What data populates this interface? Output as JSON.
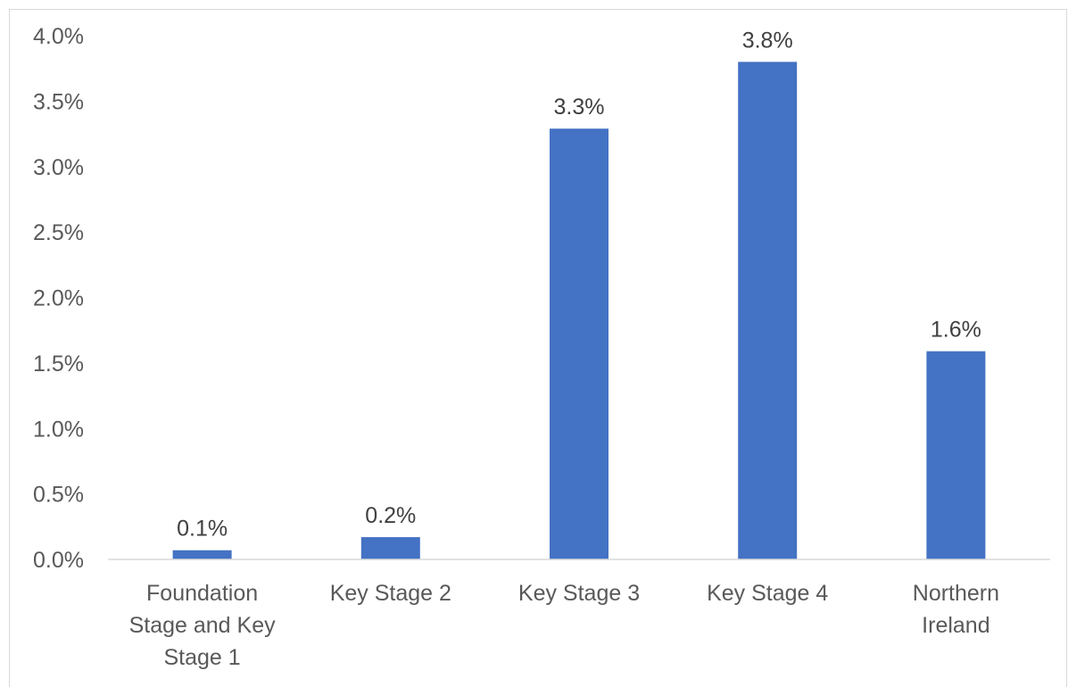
{
  "chart_data": {
    "type": "bar",
    "title": "",
    "xlabel": "",
    "ylabel": "",
    "categories": [
      [
        "Foundation",
        "Stage and Key",
        "Stage 1"
      ],
      [
        "Key Stage 2"
      ],
      [
        "Key Stage 3"
      ],
      [
        "Key Stage 4"
      ],
      [
        "Northern",
        "Ireland"
      ]
    ],
    "values": [
      0.07,
      0.17,
      3.29,
      3.8,
      1.59
    ],
    "data_labels": [
      "0.1%",
      "0.2%",
      "3.3%",
      "3.8%",
      "1.6%"
    ],
    "ylim": [
      0,
      4.0
    ],
    "yticks": [
      "0.0%",
      "0.5%",
      "1.0%",
      "1.5%",
      "2.0%",
      "2.5%",
      "3.0%",
      "3.5%",
      "4.0%"
    ],
    "grid": false,
    "legend": "none",
    "bar_color": "#4472C4"
  }
}
